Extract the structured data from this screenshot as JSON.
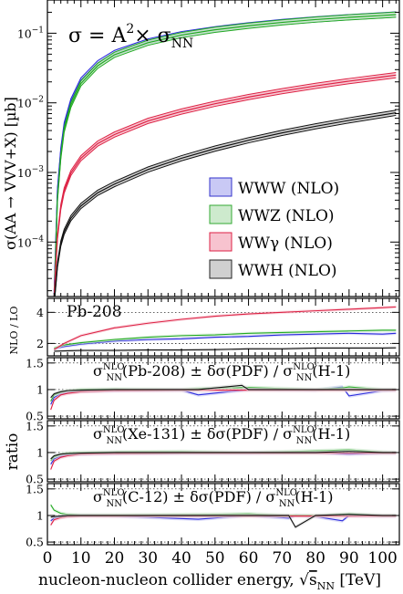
{
  "chart_data": [
    {
      "type": "line",
      "title": "σ = A²× σNN",
      "title_parts": {
        "a": "σ = A",
        "sup": "2",
        "b": "× σ",
        "sub": "NN"
      },
      "ylabel": "σ(AA → VVV+X) [µb]",
      "yscale": "log",
      "ylim": [
        1.65e-05,
        0.3
      ],
      "xlim": [
        0,
        105
      ],
      "y_tick_labels": [
        {
          "value": 0.1,
          "base": "10",
          "exp": "−1"
        },
        {
          "value": 0.01,
          "base": "10",
          "exp": "−2"
        },
        {
          "value": 0.001,
          "base": "10",
          "exp": "−3"
        },
        {
          "value": 0.0001,
          "base": "10",
          "exp": "−4"
        }
      ],
      "legend": {
        "placement": "lower-right",
        "entries": [
          {
            "label": "WWW (NLO)",
            "fill": "#c9c9f5",
            "edge": "#3333cc"
          },
          {
            "label": "WWZ (NLO)",
            "fill": "#cdeacd",
            "edge": "#33aa33"
          },
          {
            "label": "WWγ (NLO)",
            "fill": "#f7c3cf",
            "edge": "#dd2244"
          },
          {
            "label": "WWH (NLO)",
            "fill": "#d0d0d0",
            "edge": "#222222"
          }
        ]
      },
      "series": [
        {
          "name": "WWW (NLO)",
          "color": "#2b2bdc",
          "fill": "#c9c9f5",
          "x": [
            2,
            3,
            4,
            5,
            7,
            10,
            15,
            20,
            30,
            40,
            50,
            60,
            70,
            80,
            90,
            100,
            104
          ],
          "y": [
            1.8e-05,
            0.00055,
            0.0021,
            0.0048,
            0.0105,
            0.021,
            0.037,
            0.052,
            0.076,
            0.097,
            0.114,
            0.13,
            0.145,
            0.158,
            0.17,
            0.181,
            0.186
          ]
        },
        {
          "name": "WWZ (NLO)",
          "color": "#22aa22",
          "fill": "#cdeacd",
          "x": [
            2,
            3,
            4,
            5,
            7,
            10,
            15,
            20,
            30,
            40,
            50,
            60,
            70,
            80,
            90,
            100,
            104
          ],
          "y": [
            1.4e-05,
            0.00042,
            0.0017,
            0.0041,
            0.0093,
            0.019,
            0.034,
            0.049,
            0.073,
            0.094,
            0.112,
            0.128,
            0.143,
            0.157,
            0.169,
            0.18,
            0.185
          ]
        },
        {
          "name": "WWγ (NLO)",
          "color": "#dd2244",
          "fill": "#f7c3cf",
          "x": [
            2,
            3,
            4,
            5,
            7,
            10,
            15,
            20,
            30,
            40,
            50,
            60,
            70,
            80,
            90,
            100,
            104
          ],
          "y": [
            1.6e-05,
            0.00012,
            0.00032,
            0.00055,
            0.00098,
            0.0016,
            0.0026,
            0.0035,
            0.0055,
            0.0075,
            0.0097,
            0.0121,
            0.0147,
            0.0175,
            0.0205,
            0.0236,
            0.025
          ]
        },
        {
          "name": "WWH (NLO)",
          "color": "#111111",
          "fill": "#cfcfcf",
          "x": [
            2,
            3,
            4,
            5,
            7,
            10,
            15,
            20,
            30,
            40,
            50,
            60,
            70,
            80,
            90,
            100,
            104
          ],
          "y": [
            1.3e-05,
            4.7e-05,
            9.5e-05,
            0.00014,
            0.00022,
            0.00033,
            0.00051,
            0.00068,
            0.0011,
            0.0016,
            0.0022,
            0.0029,
            0.0037,
            0.0046,
            0.0056,
            0.0067,
            0.0072
          ]
        }
      ]
    },
    {
      "type": "line",
      "label": "Pb-208",
      "ylabel": "NLO / LO",
      "ylim": [
        1.2,
        4.9
      ],
      "xlim": [
        0,
        105
      ],
      "y_ticks": [
        2,
        4
      ],
      "series": [
        {
          "name": "WWW (NLO)",
          "color": "#2b2bdc",
          "x": [
            2,
            5,
            10,
            20,
            30,
            40,
            50,
            60,
            70,
            80,
            90,
            100,
            104
          ],
          "y": [
            1.65,
            1.8,
            1.95,
            2.15,
            2.25,
            2.3,
            2.4,
            2.45,
            2.55,
            2.6,
            2.65,
            2.6,
            2.65
          ]
        },
        {
          "name": "WWZ (NLO)",
          "color": "#22aa22",
          "x": [
            2,
            5,
            10,
            20,
            30,
            40,
            50,
            60,
            70,
            80,
            90,
            100,
            104
          ],
          "y": [
            1.7,
            1.9,
            2.05,
            2.25,
            2.4,
            2.5,
            2.55,
            2.65,
            2.7,
            2.75,
            2.8,
            2.85,
            2.85
          ]
        },
        {
          "name": "WWγ (NLO)",
          "color": "#dd2244",
          "x": [
            2,
            5,
            10,
            20,
            30,
            40,
            50,
            60,
            70,
            80,
            90,
            100,
            104
          ],
          "y": [
            1.6,
            2.0,
            2.5,
            3.0,
            3.3,
            3.55,
            3.75,
            3.9,
            4.0,
            4.1,
            4.2,
            4.3,
            4.35
          ]
        },
        {
          "name": "WWH (NLO)",
          "color": "#111111",
          "x": [
            2,
            5,
            10,
            20,
            30,
            40,
            50,
            60,
            70,
            80,
            90,
            100,
            104
          ],
          "y": [
            1.5,
            1.52,
            1.55,
            1.55,
            1.58,
            1.58,
            1.6,
            1.65,
            1.65,
            1.7,
            1.7,
            1.7,
            1.72
          ]
        }
      ]
    },
    {
      "type": "line",
      "label": {
        "a": "σ",
        "sub": "NN",
        "sup": "NLO",
        "b": "(Pb-208) ± δσ(PDF) / σ",
        "sub2": "NN",
        "sup2": "NLO",
        "c": "(H-1)"
      },
      "ylim": [
        0.45,
        1.6
      ],
      "xlim": [
        0,
        105
      ],
      "y_ticks": [
        0.5,
        1,
        1.5
      ],
      "series": [
        {
          "name": "WWW (NLO)",
          "color": "#2b2bdc",
          "x": [
            1,
            2,
            4,
            6,
            10,
            20,
            40,
            45,
            60,
            80,
            88,
            90,
            100,
            104
          ],
          "y": [
            0.72,
            0.85,
            0.92,
            0.95,
            0.97,
            0.98,
            0.99,
            0.9,
            1.0,
            0.99,
            1.05,
            0.88,
            0.98,
            0.99
          ]
        },
        {
          "name": "WWZ (NLO)",
          "color": "#22aa22",
          "x": [
            1,
            2,
            4,
            6,
            10,
            20,
            40,
            45,
            60,
            80,
            88,
            90,
            100,
            104
          ],
          "y": [
            0.78,
            0.9,
            0.95,
            0.98,
            1.0,
            1.01,
            1.0,
            1.02,
            1.04,
            1.0,
            1.03,
            1.05,
            1.0,
            1.0
          ]
        },
        {
          "name": "WWγ (NLO)",
          "color": "#dd2244",
          "x": [
            1,
            2,
            4,
            6,
            10,
            20,
            40,
            45,
            60,
            80,
            88,
            90,
            100,
            104
          ],
          "y": [
            0.62,
            0.8,
            0.9,
            0.93,
            0.96,
            0.98,
            0.99,
            0.99,
            0.99,
            0.99,
            0.99,
            0.99,
            0.99,
            0.99
          ]
        },
        {
          "name": "WWH (NLO)",
          "color": "#111111",
          "x": [
            1,
            2,
            4,
            6,
            10,
            20,
            40,
            45,
            58,
            60,
            80,
            90,
            100,
            104
          ],
          "y": [
            0.85,
            0.92,
            0.96,
            0.98,
            0.99,
            1.0,
            1.0,
            1.0,
            1.08,
            1.0,
            1.0,
            1.0,
            1.0,
            1.0
          ]
        }
      ]
    },
    {
      "type": "line",
      "label": {
        "a": "σ",
        "sub": "NN",
        "sup": "NLO",
        "b": "(Xe-131) ± δσ(PDF) / σ",
        "sub2": "NN",
        "sup2": "NLO",
        "c": "(H-1)"
      },
      "ylim": [
        0.45,
        1.6
      ],
      "xlim": [
        0,
        105
      ],
      "y_ticks": [
        0.5,
        1,
        1.5
      ],
      "series": [
        {
          "name": "WWW (NLO)",
          "color": "#2b2bdc",
          "x": [
            1,
            2,
            4,
            6,
            10,
            20,
            40,
            60,
            80,
            90,
            100,
            104
          ],
          "y": [
            0.78,
            0.88,
            0.93,
            0.96,
            0.97,
            0.98,
            0.99,
            0.99,
            1.0,
            0.97,
            0.99,
            0.99
          ]
        },
        {
          "name": "WWZ (NLO)",
          "color": "#22aa22",
          "x": [
            1,
            2,
            4,
            6,
            10,
            20,
            40,
            60,
            80,
            90,
            100,
            104
          ],
          "y": [
            0.85,
            0.92,
            0.97,
            0.99,
            1.0,
            1.01,
            1.02,
            1.0,
            1.03,
            1.05,
            1.01,
            1.0
          ]
        },
        {
          "name": "WWγ (NLO)",
          "color": "#dd2244",
          "x": [
            1,
            2,
            4,
            6,
            10,
            20,
            40,
            60,
            80,
            90,
            100,
            104
          ],
          "y": [
            0.68,
            0.84,
            0.91,
            0.94,
            0.97,
            0.98,
            0.99,
            0.99,
            0.99,
            0.99,
            0.99,
            0.99
          ]
        },
        {
          "name": "WWH (NLO)",
          "color": "#111111",
          "x": [
            1,
            2,
            4,
            6,
            10,
            20,
            40,
            60,
            80,
            90,
            100,
            104
          ],
          "y": [
            0.88,
            0.94,
            0.97,
            0.98,
            0.99,
            1.0,
            1.0,
            1.0,
            1.0,
            1.02,
            1.0,
            1.0
          ]
        }
      ]
    },
    {
      "type": "line",
      "label": {
        "a": "σ",
        "sub": "NN",
        "sup": "NLO",
        "b": "(C-12) ± δσ(PDF) / σ",
        "sub2": "NN",
        "sup2": "NLO",
        "c": "(H-1)"
      },
      "ylim": [
        0.45,
        1.6
      ],
      "xlim": [
        0,
        105
      ],
      "y_ticks": [
        0.5,
        1,
        1.5
      ],
      "xlabel": "nucleon-nucleon collider energy, √sNN [TeV]",
      "xlabel_parts": {
        "a": "nucleon-nucleon collider energy, ",
        "root": "s",
        "sub": "NN",
        "b": " [TeV]"
      },
      "x_ticks": [
        0,
        10,
        20,
        30,
        40,
        50,
        60,
        70,
        80,
        90,
        100
      ],
      "series": [
        {
          "name": "WWW (NLO)",
          "color": "#2b2bdc",
          "x": [
            1,
            2,
            4,
            6,
            10,
            20,
            45,
            60,
            72,
            74,
            80,
            88,
            90,
            100,
            104
          ],
          "y": [
            0.9,
            0.95,
            0.98,
            0.99,
            1.0,
            0.99,
            0.93,
            1.0,
            0.95,
            1.0,
            0.98,
            0.9,
            1.0,
            0.99,
            0.99
          ]
        },
        {
          "name": "WWZ (NLO)",
          "color": "#22aa22",
          "x": [
            1,
            2,
            4,
            6,
            10,
            20,
            45,
            60,
            72,
            74,
            80,
            90,
            100,
            104
          ],
          "y": [
            1.2,
            1.1,
            1.04,
            1.02,
            1.01,
            1.01,
            1.02,
            1.03,
            1.0,
            1.0,
            1.0,
            1.03,
            1.0,
            1.0
          ]
        },
        {
          "name": "WWγ (NLO)",
          "color": "#dd2244",
          "x": [
            1,
            2,
            4,
            6,
            10,
            20,
            45,
            60,
            72,
            74,
            80,
            90,
            100,
            104
          ],
          "y": [
            0.82,
            0.92,
            0.96,
            0.98,
            0.99,
            0.99,
            0.99,
            0.99,
            0.99,
            0.99,
            0.99,
            0.99,
            0.99,
            0.99
          ]
        },
        {
          "name": "WWH (NLO)",
          "color": "#111111",
          "x": [
            1,
            2,
            4,
            6,
            10,
            20,
            45,
            60,
            72,
            74,
            80,
            90,
            100,
            104
          ],
          "y": [
            0.97,
            0.98,
            0.99,
            1.0,
            1.0,
            1.0,
            1.0,
            1.0,
            1.0,
            0.78,
            1.0,
            1.02,
            1.0,
            1.0
          ]
        }
      ]
    }
  ],
  "shared": {
    "ratio_ylabel": "ratio"
  }
}
